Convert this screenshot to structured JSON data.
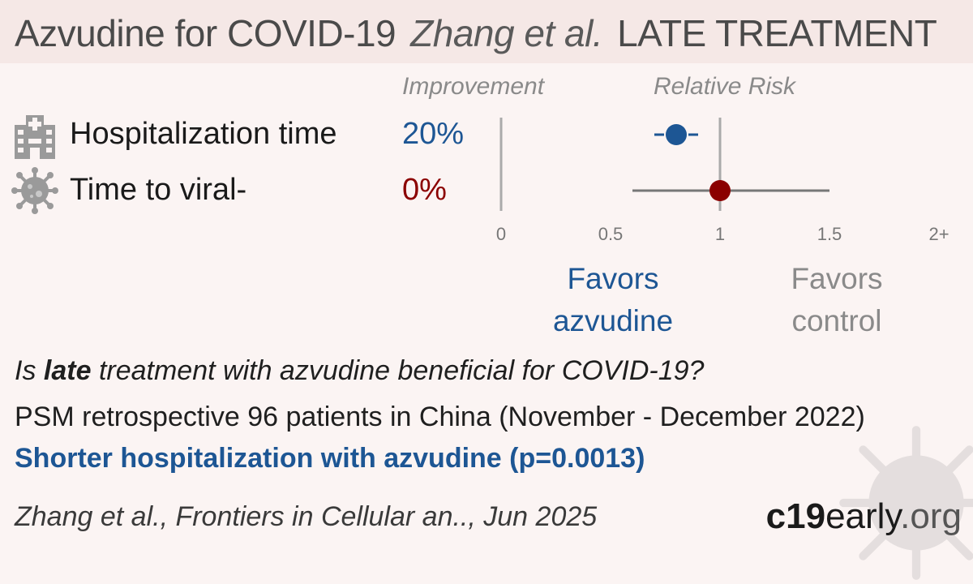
{
  "header": {
    "drug_title": "Azvudine for COVID-19",
    "authors": "Zhang et al.",
    "treatment_stage": "LATE TREATMENT"
  },
  "columns": {
    "improvement_label": "Improvement",
    "relative_risk_label": "Relative Risk"
  },
  "outcomes": [
    {
      "label": "Hospitalization time",
      "improvement": "20%",
      "icon": "hospital-icon",
      "color": "#1d5694"
    },
    {
      "label": "Time to viral-",
      "improvement": "0%",
      "icon": "virus-icon",
      "color": "#8b0000"
    }
  ],
  "favors": {
    "treatment": "Favors azvudine",
    "treatment_line1": "Favors",
    "treatment_line2": "azvudine",
    "control_line1": "Favors",
    "control_line2": "control"
  },
  "question": {
    "pre": "Is ",
    "bold": "late",
    "post": " treatment with azvudine beneficial for COVID-19?"
  },
  "study_description": "PSM retrospective 96 patients in China (November - December 2022)",
  "result_summary": "Shorter hospitalization with azvudine (p=0.0013)",
  "citation": "Zhang et al., Frontiers in Cellular an.., Jun 2025",
  "brand": {
    "part1": "c19",
    "part2": "early",
    "part3": ".org"
  },
  "chart_data": {
    "type": "scatter",
    "title": "Relative Risk",
    "x_ticks": [
      "0",
      "0.5",
      "1",
      "1.5",
      "2+"
    ],
    "xlim": [
      0,
      2
    ],
    "reference_line": 1,
    "series": [
      {
        "name": "Hospitalization time",
        "estimate": 0.8,
        "ci_low": 0.7,
        "ci_high": 0.9,
        "color": "#1d5694"
      },
      {
        "name": "Time to viral-",
        "estimate": 1.0,
        "ci_low": 0.6,
        "ci_high": 1.5,
        "color": "#8b0000"
      }
    ]
  }
}
